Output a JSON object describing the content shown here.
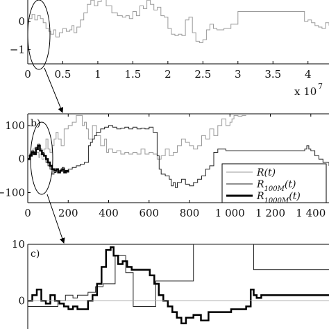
{
  "chart_data": [
    {
      "type": "line",
      "panel": "a",
      "xlim": [
        0,
        4.3
      ],
      "ylim": [
        -1.5,
        1
      ],
      "x_ticks": [
        "0",
        "0.5",
        "1",
        "1.5",
        "2",
        "2.5",
        "3",
        "3.5",
        "4"
      ],
      "x_tick_values": [
        0,
        0.5,
        1,
        1.5,
        2,
        2.5,
        3,
        3.5,
        4
      ],
      "y_ticks": [
        "0",
        "−1"
      ],
      "y_tick_values": [
        0,
        -1
      ],
      "x_multiplier": "x 10",
      "x_multiplier_exp": "7",
      "series": [
        {
          "color": "#9a9a9a",
          "x": [
            0,
            0.06,
            0.1,
            0.14,
            0.18,
            0.22,
            0.26,
            0.3,
            0.33,
            0.37,
            0.4,
            0.45,
            0.5,
            0.55,
            0.6,
            0.63,
            0.66,
            0.7,
            0.75,
            0.8,
            0.85,
            0.9,
            0.95,
            1.0,
            1.05,
            1.12,
            1.2,
            1.28,
            1.35,
            1.4,
            1.45,
            1.5,
            1.55,
            1.6,
            1.65,
            1.7,
            1.75,
            1.8,
            1.85,
            1.9,
            1.95,
            2.0,
            2.05,
            2.1,
            2.15,
            2.2,
            2.25,
            2.3,
            2.35,
            2.4,
            2.45,
            2.5,
            2.55,
            2.6,
            2.65,
            2.7,
            2.8,
            2.9,
            3.0,
            3.2,
            3.4,
            3.6,
            3.8,
            3.9,
            3.95,
            4.0,
            4.05,
            4.1,
            4.15,
            4.2,
            4.25,
            4.3
          ],
          "y": [
            0.1,
            0.25,
            0.05,
            0.2,
            0.1,
            -0.05,
            -0.25,
            -0.35,
            -0.45,
            -0.3,
            -0.55,
            -0.4,
            -0.25,
            -0.35,
            -0.3,
            -0.15,
            -0.4,
            -0.2,
            0.05,
            0.3,
            0.6,
            0.75,
            0.55,
            0.7,
            0.95,
            0.55,
            0.3,
            0.2,
            0.15,
            0.2,
            0.1,
            0.35,
            0.2,
            0.55,
            0.45,
            0.75,
            0.6,
            0.4,
            0.5,
            0.2,
            0.15,
            -0.25,
            -0.45,
            -0.5,
            -0.45,
            -0.5,
            0.05,
            0.15,
            -0.4,
            -0.7,
            -0.75,
            -0.65,
            -0.3,
            -0.1,
            -0.25,
            -0.3,
            -0.25,
            -0.1,
            0.35,
            0.35,
            0.35,
            0.35,
            0.35,
            0.35,
            0.0,
            0.05,
            -0.05,
            -0.15,
            -0.2,
            -0.25,
            -0.05,
            -0.15
          ]
        }
      ]
    },
    {
      "type": "line",
      "panel": "b",
      "panel_label": "b)",
      "xlim": [
        0,
        1490
      ],
      "ylim": [
        -130,
        135
      ],
      "x_ticks": [
        "0",
        "200",
        "400",
        "600",
        "800",
        "1 000",
        "1 200",
        "1 400"
      ],
      "x_tick_values": [
        0,
        200,
        400,
        600,
        800,
        1000,
        1200,
        1400
      ],
      "y_ticks": [
        "100",
        "0",
        "−100"
      ],
      "y_tick_values": [
        100,
        0,
        -100
      ],
      "legend": {
        "position": "lower-right",
        "entries": [
          {
            "main": "R",
            "sub": "",
            "tail": "(t)",
            "color": "#9a9a9a",
            "width": 1
          },
          {
            "main": "R",
            "sub": "100M",
            "tail": "(t)",
            "color": "#222222",
            "width": 1
          },
          {
            "main": "R",
            "sub": "1000M",
            "tail": "(t)",
            "color": "#000000",
            "width": 3
          }
        ]
      },
      "series": [
        {
          "color": "#9a9a9a",
          "width": 1,
          "x": [
            0,
            15,
            25,
            35,
            45,
            55,
            60,
            70,
            80,
            90,
            100,
            110,
            120,
            130,
            140,
            150,
            165,
            180,
            200,
            220,
            240,
            260,
            270,
            280,
            290,
            300,
            320,
            340,
            360,
            380,
            390,
            400,
            420,
            440,
            460,
            480,
            500,
            520,
            540,
            560,
            580,
            600,
            620,
            640,
            660,
            680,
            700,
            720,
            740,
            760,
            780,
            800,
            820,
            840,
            860,
            880,
            900,
            920,
            940,
            960,
            980,
            1000,
            1010,
            1020,
            1030,
            1040,
            1060,
            1080
          ],
          "y": [
            10,
            20,
            30,
            35,
            20,
            5,
            15,
            0,
            30,
            60,
            30,
            20,
            40,
            60,
            80,
            60,
            40,
            90,
            100,
            110,
            130,
            130,
            100,
            110,
            90,
            60,
            100,
            70,
            40,
            60,
            20,
            30,
            20,
            25,
            15,
            20,
            15,
            20,
            15,
            30,
            15,
            20,
            15,
            0,
            10,
            30,
            10,
            20,
            40,
            60,
            50,
            40,
            30,
            40,
            70,
            60,
            90,
            70,
            100,
            120,
            100,
            110,
            120,
            130,
            130,
            128,
            130,
            130
          ]
        },
        {
          "color": "#222222",
          "width": 1,
          "x": [
            0,
            10,
            20,
            30,
            40,
            50,
            60,
            70,
            80,
            90,
            100,
            110,
            120,
            130,
            140,
            150,
            160,
            170,
            180,
            200,
            220,
            240,
            260,
            280,
            300,
            310,
            320,
            330,
            340,
            360,
            380,
            400,
            420,
            440,
            460,
            480,
            500,
            520,
            540,
            560,
            580,
            600,
            620,
            640,
            650,
            660,
            680,
            700,
            710,
            720,
            730,
            740,
            760,
            780,
            800,
            820,
            840,
            860,
            880,
            900,
            920,
            940,
            960,
            980,
            1000,
            1100,
            1200,
            1300,
            1350,
            1370,
            1380,
            1390,
            1400,
            1420,
            1440,
            1460,
            1490
          ],
          "y": [
            0,
            15,
            25,
            20,
            35,
            45,
            30,
            20,
            10,
            -10,
            -20,
            -30,
            -45,
            -40,
            -35,
            -40,
            -30,
            -25,
            -35,
            -30,
            -25,
            -20,
            -15,
            -10,
            40,
            50,
            60,
            70,
            80,
            90,
            95,
            100,
            95,
            90,
            92,
            95,
            90,
            95,
            90,
            92,
            90,
            95,
            80,
            10,
            -30,
            -45,
            -50,
            -60,
            -80,
            -70,
            -85,
            -70,
            -60,
            -75,
            -80,
            -70,
            -60,
            -50,
            -30,
            -20,
            20,
            30,
            30,
            25,
            25,
            25,
            25,
            25,
            25,
            30,
            40,
            30,
            25,
            10,
            0,
            -10,
            -20
          ]
        },
        {
          "color": "#000000",
          "width": 2.5,
          "x": [
            0,
            10,
            20,
            30,
            40,
            50,
            60,
            70,
            80,
            90,
            100,
            110,
            120,
            130,
            140,
            150,
            160,
            170,
            180,
            190,
            200
          ],
          "y": [
            0,
            10,
            20,
            15,
            30,
            40,
            25,
            15,
            10,
            0,
            -10,
            -20,
            -30,
            -35,
            -30,
            -40,
            -35,
            -30,
            -40,
            -35,
            -40
          ]
        }
      ]
    },
    {
      "type": "line",
      "panel": "c",
      "panel_label": "c)",
      "xlim": [
        0,
        200
      ],
      "ylim": [
        -5,
        10
      ],
      "y_ticks": [
        "10",
        "0"
      ],
      "y_tick_values": [
        10,
        0
      ],
      "series": [
        {
          "color": "#222222",
          "width": 1,
          "x": [
            0,
            5,
            10,
            15,
            20,
            25,
            30,
            33,
            40,
            45,
            50,
            55,
            58,
            60,
            65,
            70,
            75,
            80,
            85,
            90,
            95,
            100,
            105,
            110,
            115,
            120,
            125,
            130,
            135,
            140,
            150,
            160,
            170,
            180,
            190,
            200
          ],
          "y": [
            -1,
            -1,
            -1,
            -1,
            0,
            1,
            0.5,
            1,
            1.5,
            2.5,
            3,
            3,
            8,
            8,
            5,
            -1,
            -1,
            -1,
            3.5,
            3.5,
            3.5,
            3.5,
            3.5,
            10,
            10,
            10,
            10,
            10,
            10,
            10,
            5.5,
            5.5,
            5.5,
            5.5,
            5.5,
            5.5
          ]
        },
        {
          "color": "#000000",
          "width": 2.5,
          "x": [
            0,
            3,
            6,
            9,
            12,
            15,
            18,
            21,
            24,
            27,
            30,
            33,
            36,
            40,
            43,
            46,
            49,
            52,
            55,
            57,
            60,
            63,
            66,
            69,
            72,
            75,
            78,
            81,
            84,
            87,
            90,
            93,
            96,
            99,
            102,
            105,
            110,
            115,
            120,
            125,
            130,
            135,
            140,
            145,
            148,
            150,
            152,
            155,
            160,
            170,
            180,
            190,
            200
          ],
          "y": [
            0,
            1,
            2,
            0,
            -0.5,
            1,
            0,
            -0.5,
            -1,
            -1.5,
            -1,
            -1.5,
            -1.5,
            0,
            1,
            3,
            6,
            9,
            9.5,
            8,
            6.5,
            7,
            6,
            5.5,
            5.5,
            5.5,
            5.5,
            4.5,
            3,
            1,
            0,
            -1,
            -2,
            -3,
            -4,
            -3,
            -2.5,
            -3.5,
            -2,
            -2,
            -2,
            -1.5,
            -1.5,
            -1,
            2,
            1,
            0.5,
            1,
            1,
            1,
            1,
            1,
            1
          ]
        }
      ]
    }
  ]
}
